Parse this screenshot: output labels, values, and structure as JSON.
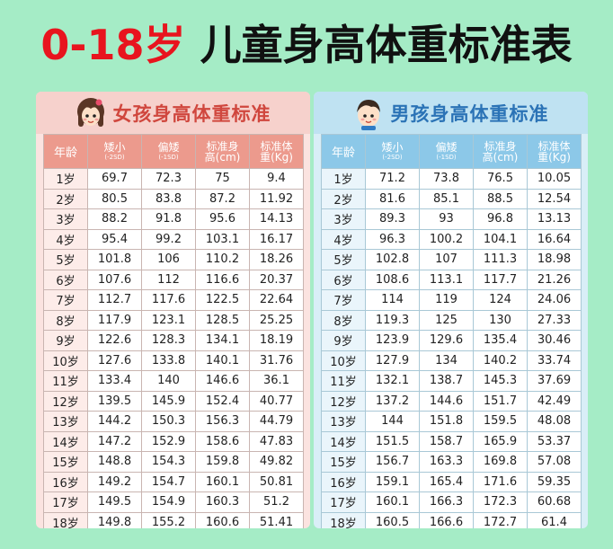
{
  "title": {
    "prefix": "0-18岁",
    "main": "儿童身高体重标准表"
  },
  "girl": {
    "heading": "女孩身高体重标准",
    "headers": [
      {
        "main": "年龄",
        "sub": ""
      },
      {
        "main": "矮小",
        "sub": "(-2SD)"
      },
      {
        "main": "偏矮",
        "sub": "(-1SD)"
      },
      {
        "main": "标准身",
        "sub": "高(cm)"
      },
      {
        "main": "标准体",
        "sub": "重(Kg)"
      }
    ],
    "rows": [
      [
        "1岁",
        "69.7",
        "72.3",
        "75",
        "9.4"
      ],
      [
        "2岁",
        "80.5",
        "83.8",
        "87.2",
        "11.92"
      ],
      [
        "3岁",
        "88.2",
        "91.8",
        "95.6",
        "14.13"
      ],
      [
        "4岁",
        "95.4",
        "99.2",
        "103.1",
        "16.17"
      ],
      [
        "5岁",
        "101.8",
        "106",
        "110.2",
        "18.26"
      ],
      [
        "6岁",
        "107.6",
        "112",
        "116.6",
        "20.37"
      ],
      [
        "7岁",
        "112.7",
        "117.6",
        "122.5",
        "22.64"
      ],
      [
        "8岁",
        "117.9",
        "123.1",
        "128.5",
        "25.25"
      ],
      [
        "9岁",
        "122.6",
        "128.3",
        "134.1",
        "18.19"
      ],
      [
        "10岁",
        "127.6",
        "133.8",
        "140.1",
        "31.76"
      ],
      [
        "11岁",
        "133.4",
        "140",
        "146.6",
        "36.1"
      ],
      [
        "12岁",
        "139.5",
        "145.9",
        "152.4",
        "40.77"
      ],
      [
        "13岁",
        "144.2",
        "150.3",
        "156.3",
        "44.79"
      ],
      [
        "14岁",
        "147.2",
        "152.9",
        "158.6",
        "47.83"
      ],
      [
        "15岁",
        "148.8",
        "154.3",
        "159.8",
        "49.82"
      ],
      [
        "16岁",
        "149.2",
        "154.7",
        "160.1",
        "50.81"
      ],
      [
        "17岁",
        "149.5",
        "154.9",
        "160.3",
        "51.2"
      ],
      [
        "18岁",
        "149.8",
        "155.2",
        "160.6",
        "51.41"
      ]
    ]
  },
  "boy": {
    "heading": "男孩身高体重标准",
    "headers": [
      {
        "main": "年龄",
        "sub": ""
      },
      {
        "main": "矮小",
        "sub": "(-2SD)"
      },
      {
        "main": "偏矮",
        "sub": "(-1SD)"
      },
      {
        "main": "标准身",
        "sub": "高(cm)"
      },
      {
        "main": "标准体",
        "sub": "重(Kg)"
      }
    ],
    "rows": [
      [
        "1岁",
        "71.2",
        "73.8",
        "76.5",
        "10.05"
      ],
      [
        "2岁",
        "81.6",
        "85.1",
        "88.5",
        "12.54"
      ],
      [
        "3岁",
        "89.3",
        "93",
        "96.8",
        "13.13"
      ],
      [
        "4岁",
        "96.3",
        "100.2",
        "104.1",
        "16.64"
      ],
      [
        "5岁",
        "102.8",
        "107",
        "111.3",
        "18.98"
      ],
      [
        "6岁",
        "108.6",
        "113.1",
        "117.7",
        "21.26"
      ],
      [
        "7岁",
        "114",
        "119",
        "124",
        "24.06"
      ],
      [
        "8岁",
        "119.3",
        "125",
        "130",
        "27.33"
      ],
      [
        "9岁",
        "123.9",
        "129.6",
        "135.4",
        "30.46"
      ],
      [
        "10岁",
        "127.9",
        "134",
        "140.2",
        "33.74"
      ],
      [
        "11岁",
        "132.1",
        "138.7",
        "145.3",
        "37.69"
      ],
      [
        "12岁",
        "137.2",
        "144.6",
        "151.7",
        "42.49"
      ],
      [
        "13岁",
        "144",
        "151.8",
        "159.5",
        "48.08"
      ],
      [
        "14岁",
        "151.5",
        "158.7",
        "165.9",
        "53.37"
      ],
      [
        "15岁",
        "156.7",
        "163.3",
        "169.8",
        "57.08"
      ],
      [
        "16岁",
        "159.1",
        "165.4",
        "171.6",
        "59.35"
      ],
      [
        "17岁",
        "160.1",
        "166.3",
        "172.3",
        "60.68"
      ],
      [
        "18岁",
        "160.5",
        "166.6",
        "172.7",
        "61.4"
      ]
    ]
  },
  "icons": {
    "girl": "girl-avatar-icon",
    "boy": "boy-avatar-icon"
  },
  "colors": {
    "background": "#a5ecc6",
    "title_accent": "#e8141e",
    "girl_header": "#ec9a8d",
    "boy_header": "#8cc8e8"
  }
}
